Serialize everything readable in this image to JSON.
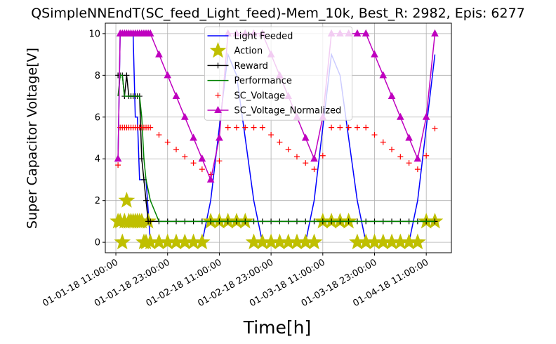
{
  "chart_data": {
    "type": "line",
    "title": "QSimpleNNEndT(SC_feed_Light_feed)-Mem_10k, Best_R: 2982, Epis: 6277",
    "xlabel": "Time[h]",
    "ylabel": "Super Capacitor Voltage[V]",
    "x": [
      "01-01-18 11:30:00",
      "01-01-18 12:00:00",
      "01-01-18 12:30:00",
      "01-01-18 13:00:00",
      "01-01-18 13:30:00",
      "01-01-18 14:00:00",
      "01-01-18 14:30:00",
      "01-01-18 15:00:00",
      "01-01-18 15:30:00",
      "01-01-18 16:00:00",
      "01-01-18 16:30:00",
      "01-01-18 17:00:00",
      "01-01-18 17:30:00",
      "01-01-18 18:00:00",
      "01-01-18 18:30:00",
      "01-01-18 19:00:00",
      "01-01-18 21:00:00",
      "01-01-18 23:00:00",
      "01-02-18 01:00:00",
      "01-02-18 03:00:00",
      "01-02-18 05:00:00",
      "01-02-18 07:00:00",
      "01-02-18 09:00:00",
      "01-02-18 11:00:00",
      "01-02-18 13:00:00",
      "01-02-18 15:00:00",
      "01-02-18 17:00:00",
      "01-02-18 19:00:00",
      "01-02-18 21:00:00",
      "01-02-18 23:00:00",
      "01-03-18 01:00:00",
      "01-03-18 03:00:00",
      "01-03-18 05:00:00",
      "01-03-18 07:00:00",
      "01-03-18 09:00:00",
      "01-03-18 11:00:00",
      "01-03-18 13:00:00",
      "01-03-18 15:00:00",
      "01-03-18 17:00:00",
      "01-03-18 19:00:00",
      "01-03-18 21:00:00",
      "01-03-18 23:00:00",
      "01-04-18 01:00:00",
      "01-04-18 03:00:00",
      "01-04-18 05:00:00",
      "01-04-18 07:00:00",
      "01-04-18 09:00:00",
      "01-04-18 11:00:00",
      "01-04-18 13:00:00"
    ],
    "series": [
      {
        "name": "Light Feeded",
        "color": "#0000ff",
        "line": true,
        "marker": "none",
        "values": [
          4,
          10,
          10,
          10,
          10,
          10,
          10,
          10,
          6,
          6,
          3,
          3,
          3,
          3,
          1.5,
          0,
          0,
          0,
          0,
          0,
          0,
          0,
          2,
          5.5,
          9,
          8,
          5,
          2,
          0,
          0,
          0,
          0,
          0,
          0,
          2,
          5.5,
          9,
          8,
          5,
          2,
          0,
          0,
          0,
          0,
          0,
          0,
          2,
          5.5,
          9
        ]
      },
      {
        "name": "Action",
        "color": "#bfbf00",
        "line": false,
        "marker": "star",
        "values": [
          1,
          1,
          0,
          1,
          2,
          1,
          1,
          1,
          1,
          1,
          1,
          1,
          0,
          0,
          1,
          0,
          0,
          0,
          0,
          0,
          0,
          0,
          1,
          1,
          1,
          1,
          1,
          0,
          0,
          0,
          0,
          0,
          0,
          0,
          0,
          1,
          1,
          1,
          1,
          0,
          0,
          0,
          0,
          0,
          0,
          0,
          0,
          1,
          1
        ]
      },
      {
        "name": "Reward",
        "color": "#000000",
        "line": true,
        "marker": "plus",
        "values": [
          8,
          8,
          8,
          7,
          8,
          7,
          7,
          7,
          7,
          7,
          7,
          4,
          3,
          2,
          1,
          1,
          1,
          1,
          1,
          1,
          1,
          1,
          1,
          1,
          1,
          1,
          1,
          1,
          1,
          1,
          1,
          1,
          1,
          1,
          1,
          1,
          1,
          1,
          1,
          1,
          1,
          1,
          1,
          1,
          1,
          1,
          1,
          1,
          1
        ]
      },
      {
        "name": "Performance",
        "color": "#008000",
        "line": true,
        "marker": "none",
        "values": [
          7,
          8,
          8,
          7,
          7,
          7,
          7,
          7,
          7,
          7,
          7,
          6,
          4,
          3,
          2.5,
          2,
          1,
          1,
          1,
          1,
          1,
          1,
          1,
          1,
          1,
          1,
          1,
          1,
          1,
          1,
          1,
          1,
          1,
          1,
          1,
          1,
          1,
          1,
          1,
          1,
          1,
          1,
          1,
          1,
          1,
          1,
          1,
          1,
          1
        ]
      },
      {
        "name": "SC_Voltage",
        "color": "#ff0000",
        "line": false,
        "marker": "plus",
        "values": [
          3.7,
          5.5,
          5.5,
          5.5,
          5.5,
          5.5,
          5.5,
          5.5,
          5.5,
          5.5,
          5.5,
          5.5,
          5.5,
          5.5,
          5.5,
          5.5,
          5.15,
          4.8,
          4.45,
          4.1,
          3.8,
          3.5,
          3.25,
          3.9,
          5.5,
          5.5,
          5.5,
          5.5,
          5.5,
          5.15,
          4.8,
          4.45,
          4.1,
          3.8,
          3.5,
          4.15,
          5.5,
          5.5,
          5.5,
          5.5,
          5.5,
          5.15,
          4.8,
          4.45,
          4.1,
          3.8,
          3.5,
          4.15,
          5.45
        ]
      },
      {
        "name": "SC_Voltage_Normalized",
        "color": "#bf00bf",
        "line": true,
        "marker": "triangle",
        "values": [
          4,
          10,
          10,
          10,
          10,
          10,
          10,
          10,
          10,
          10,
          10,
          10,
          10,
          10,
          10,
          10,
          9,
          8,
          7,
          6,
          5,
          4,
          3,
          5,
          10,
          10,
          10,
          10,
          10,
          9,
          8,
          7,
          6,
          5,
          4,
          6,
          10,
          10,
          10,
          10,
          10,
          9,
          8,
          7,
          6,
          5,
          4,
          6,
          10
        ]
      }
    ],
    "xlim": [
      "01-01-18 08:33:00",
      "01-04-18 16:50:00"
    ],
    "xticks": [
      "01-01-18 11:00:00",
      "01-01-18 23:00:00",
      "01-02-18 11:00:00",
      "01-02-18 23:00:00",
      "01-03-18 11:00:00",
      "01-03-18 23:00:00",
      "01-04-18 11:00:00"
    ],
    "ylim": [
      -0.5,
      10.5
    ],
    "yticks": [
      0,
      2,
      4,
      6,
      8,
      10
    ],
    "grid": true,
    "legend": "upper center"
  }
}
